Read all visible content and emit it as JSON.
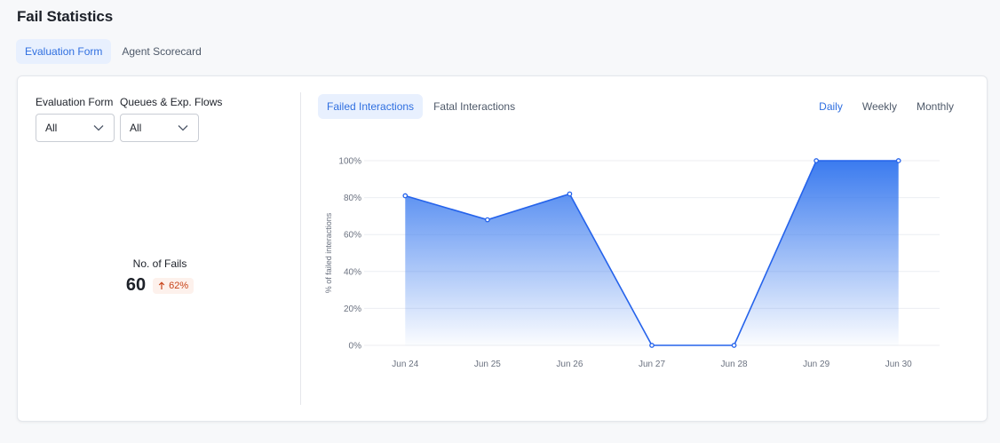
{
  "page": {
    "title": "Fail Statistics"
  },
  "top_tabs": [
    {
      "label": "Evaluation Form",
      "active": true
    },
    {
      "label": "Agent Scorecard",
      "active": false
    }
  ],
  "filters": {
    "evaluation_form": {
      "label": "Evaluation Form",
      "value": "All"
    },
    "queues": {
      "label": "Queues & Exp. Flows",
      "value": "All"
    }
  },
  "kpi": {
    "label": "No. of Fails",
    "value": "60",
    "change": "62%",
    "direction": "up"
  },
  "chart_tabs": [
    {
      "label": "Failed Interactions",
      "active": true
    },
    {
      "label": "Fatal Interactions",
      "active": false
    }
  ],
  "period_tabs": [
    {
      "label": "Daily",
      "active": true
    },
    {
      "label": "Weekly",
      "active": false
    },
    {
      "label": "Monthly",
      "active": false
    }
  ],
  "colors": {
    "accent": "#2f6fe0",
    "line": "#2563eb",
    "badge_text": "#c8441a"
  },
  "chart_data": {
    "type": "area",
    "title": "",
    "xlabel": "",
    "ylabel": "% of failed interactions",
    "categories": [
      "Jun 24",
      "Jun 25",
      "Jun 26",
      "Jun 27",
      "Jun 28",
      "Jun 29",
      "Jun 30"
    ],
    "values": [
      81,
      68,
      82,
      0,
      0,
      100,
      100
    ],
    "ylim": [
      0,
      100
    ],
    "yticks": [
      "0%",
      "20%",
      "40%",
      "60%",
      "80%",
      "100%"
    ],
    "grid": true,
    "legend": "none"
  }
}
